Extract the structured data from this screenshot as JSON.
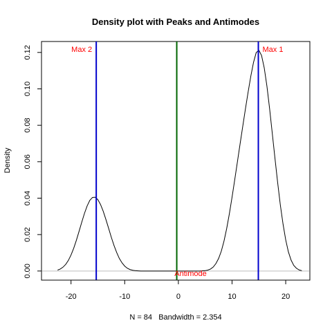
{
  "chart_data": {
    "type": "line",
    "title": "Density plot with Peaks and Antimodes",
    "xlabel": "N = 84   Bandwidth = 2.354",
    "ylabel": "Density",
    "xlim": [
      -25.5,
      24.5
    ],
    "ylim": [
      -0.005,
      0.126
    ],
    "x_ticks": [
      -20,
      -10,
      0,
      10,
      20
    ],
    "y_ticks": [
      0.0,
      0.02,
      0.04,
      0.06,
      0.08,
      0.1,
      0.12
    ],
    "x_tick_labels": [
      "-20",
      "-10",
      "0",
      "10",
      "20"
    ],
    "y_tick_labels": [
      "0.00",
      "0.02",
      "0.04",
      "0.06",
      "0.08",
      "0.10",
      "0.12"
    ],
    "series": [
      {
        "x": [
          -22.5,
          -22,
          -21.5,
          -21,
          -20.5,
          -20,
          -19.5,
          -19,
          -18.5,
          -18,
          -17.5,
          -17,
          -16.5,
          -16,
          -15.5,
          -15,
          -14.5,
          -14,
          -13.5,
          -13,
          -12.5,
          -12,
          -11.5,
          -11,
          -10.5,
          -10,
          -9.5,
          -9,
          -8.5,
          -8,
          -7.5,
          -7,
          -6,
          -4,
          -2,
          -0.3,
          2,
          4,
          5,
          5.5,
          6,
          6.5,
          7,
          7.5,
          8,
          8.5,
          9,
          9.5,
          10,
          10.5,
          11,
          11.5,
          12,
          12.5,
          13,
          13.5,
          14,
          14.5,
          15,
          15.5,
          16,
          16.5,
          17,
          17.5,
          18,
          18.5,
          19,
          19.5,
          20,
          20.5,
          21,
          21.5,
          22,
          22.5,
          23
        ],
        "y": [
          0.0005,
          0.0011,
          0.0021,
          0.0036,
          0.0058,
          0.0088,
          0.0125,
          0.0169,
          0.0218,
          0.0268,
          0.0316,
          0.0357,
          0.0388,
          0.0404,
          0.0405,
          0.0392,
          0.0365,
          0.0328,
          0.0283,
          0.0235,
          0.0186,
          0.0141,
          0.0102,
          0.0069,
          0.0045,
          0.0027,
          0.0015,
          0.0008,
          0.0004,
          0.0002,
          0.0001,
          0.0,
          0.0,
          0.0,
          0.0,
          0.0,
          0.0,
          0.0,
          0.0002,
          0.0005,
          0.0011,
          0.0022,
          0.0041,
          0.0069,
          0.0109,
          0.0164,
          0.0233,
          0.0314,
          0.0405,
          0.0501,
          0.0599,
          0.0698,
          0.0795,
          0.0891,
          0.0983,
          0.107,
          0.1145,
          0.1199,
          0.1212,
          0.1183,
          0.1115,
          0.1015,
          0.0891,
          0.0755,
          0.0618,
          0.0485,
          0.0362,
          0.0258,
          0.0171,
          0.0105,
          0.006,
          0.0031,
          0.0015,
          0.0006,
          0.0002
        ],
        "color": "#000000"
      }
    ],
    "baseline": {
      "y": 0,
      "color": "#bebebe"
    },
    "vlines": [
      {
        "x": -15.3,
        "color": "#0000cc",
        "label": "Max 2",
        "label_color": "#ff0000",
        "label_side": "left"
      },
      {
        "x": 14.9,
        "color": "#0000cc",
        "label": "Max 1",
        "label_color": "#ff0000",
        "label_side": "right"
      },
      {
        "x": -0.3,
        "color": "#006400",
        "label": "Antimode",
        "label_color": "#ff0000",
        "label_side": "bottom"
      }
    ],
    "grid": false,
    "legend": "none"
  }
}
